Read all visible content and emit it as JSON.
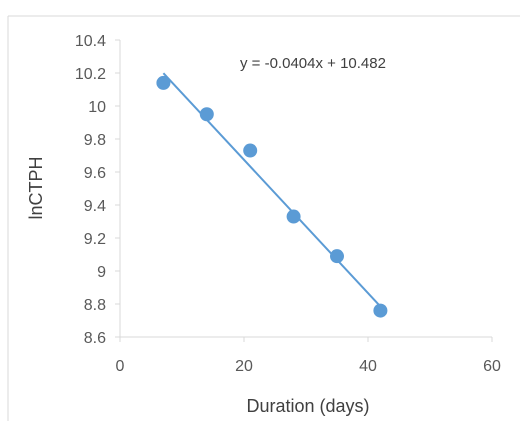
{
  "chart_data": {
    "type": "scatter",
    "title": "",
    "xlabel": "Duration (days)",
    "ylabel": "lnCTPH",
    "xlim": [
      0,
      60
    ],
    "ylim": [
      8.6,
      10.4
    ],
    "x_ticks": [
      "0",
      "20",
      "40",
      "60"
    ],
    "y_ticks": [
      "8.6",
      "8.8",
      "9",
      "9.2",
      "9.4",
      "9.6",
      "9.8",
      "10",
      "10.2",
      "10.4"
    ],
    "grid": false,
    "legend": "none",
    "series": [
      {
        "x": [
          7,
          14,
          21,
          28,
          35,
          42
        ],
        "y": [
          10.14,
          9.95,
          9.73,
          9.33,
          9.09,
          8.76
        ],
        "color": "#5b9bd5"
      }
    ],
    "trendline": {
      "slope": -0.0404,
      "intercept": 10.482,
      "x_range": [
        7,
        42
      ],
      "equation": "y = -0.0404x + 10.482",
      "color": "#5b9bd5"
    }
  }
}
